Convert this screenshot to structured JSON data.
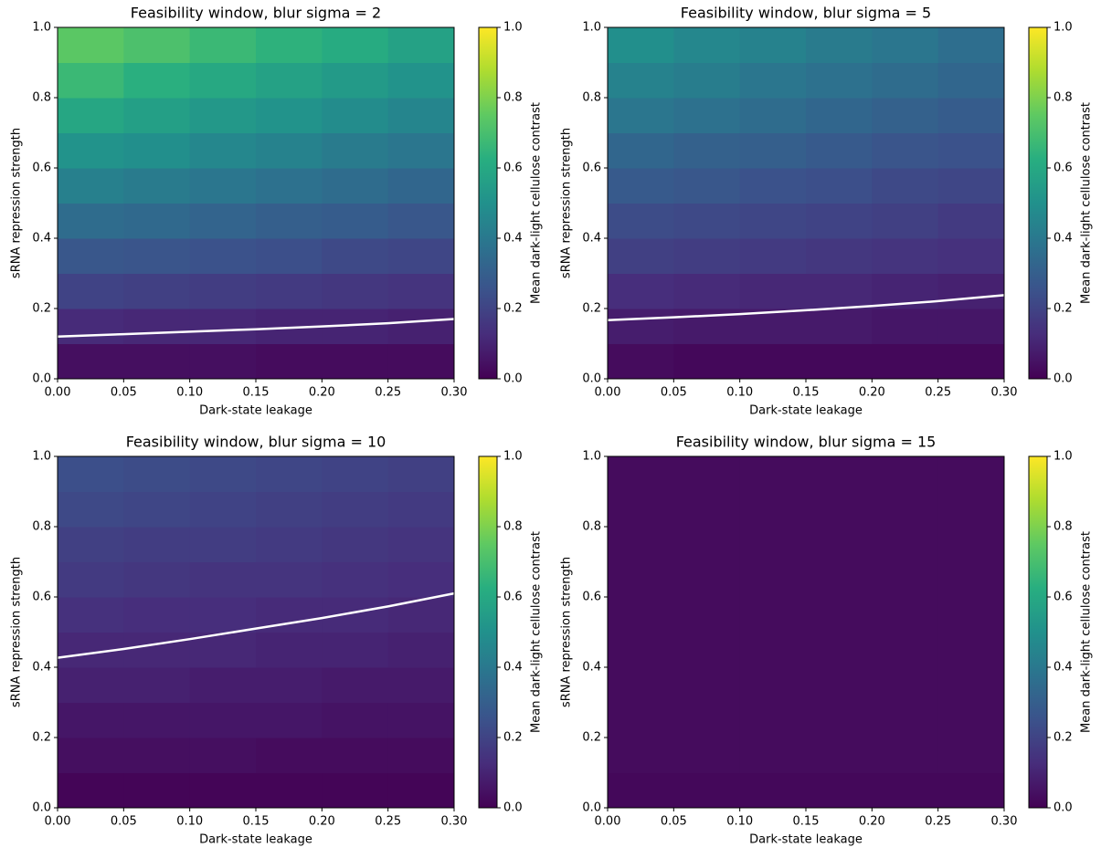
{
  "chart_data": [
    {
      "type": "heatmap",
      "title": "Feasibility window, blur sigma = 2",
      "x_label": "Dark-state leakage",
      "y_label": "sRNA repression strength",
      "colorbar_label": "Mean dark-light cellulose contrast",
      "colormap": "viridis",
      "x_edges": [
        0,
        0.05,
        0.1,
        0.15,
        0.2,
        0.25,
        0.3
      ],
      "y_edges": [
        0,
        0.1,
        0.2,
        0.3,
        0.4,
        0.5,
        0.6,
        0.7,
        0.8,
        0.9,
        1.0
      ],
      "values": [
        [
          0.04,
          0.04,
          0.04,
          0.03,
          0.03,
          0.03
        ],
        [
          0.12,
          0.11,
          0.11,
          0.1,
          0.1,
          0.09
        ],
        [
          0.2,
          0.19,
          0.18,
          0.17,
          0.16,
          0.15
        ],
        [
          0.27,
          0.26,
          0.25,
          0.24,
          0.22,
          0.21
        ],
        [
          0.35,
          0.34,
          0.32,
          0.3,
          0.29,
          0.27
        ],
        [
          0.43,
          0.41,
          0.39,
          0.37,
          0.35,
          0.33
        ],
        [
          0.51,
          0.49,
          0.46,
          0.44,
          0.41,
          0.39
        ],
        [
          0.59,
          0.56,
          0.53,
          0.51,
          0.48,
          0.45
        ],
        [
          0.67,
          0.63,
          0.6,
          0.57,
          0.54,
          0.51
        ],
        [
          0.74,
          0.71,
          0.67,
          0.64,
          0.61,
          0.57
        ]
      ],
      "contour": {
        "color": "#ffffff",
        "x": [
          0,
          0.05,
          0.1,
          0.15,
          0.2,
          0.25,
          0.3
        ],
        "y": [
          0.12,
          0.127,
          0.134,
          0.141,
          0.149,
          0.158,
          0.17
        ]
      },
      "xlim": [
        0,
        0.3
      ],
      "ylim": [
        0,
        1
      ],
      "clim": [
        0,
        1
      ],
      "xticks": [
        {
          "value": 0,
          "label": "0.00"
        },
        {
          "value": 0.05,
          "label": "0.05"
        },
        {
          "value": 0.1,
          "label": "0.10"
        },
        {
          "value": 0.15,
          "label": "0.15"
        },
        {
          "value": 0.2,
          "label": "0.20"
        },
        {
          "value": 0.25,
          "label": "0.25"
        },
        {
          "value": 0.3,
          "label": "0.30"
        }
      ],
      "yticks": [
        {
          "value": 0,
          "label": "0.0"
        },
        {
          "value": 0.2,
          "label": "0.2"
        },
        {
          "value": 0.4,
          "label": "0.4"
        },
        {
          "value": 0.6,
          "label": "0.6"
        },
        {
          "value": 0.8,
          "label": "0.8"
        },
        {
          "value": 1,
          "label": "1.0"
        }
      ],
      "cticks": [
        {
          "value": 0,
          "label": "0.0"
        },
        {
          "value": 0.2,
          "label": "0.2"
        },
        {
          "value": 0.4,
          "label": "0.4"
        },
        {
          "value": 0.6,
          "label": "0.6"
        },
        {
          "value": 0.8,
          "label": "0.8"
        },
        {
          "value": 1,
          "label": "1.0"
        }
      ]
    },
    {
      "type": "heatmap",
      "title": "Feasibility window, blur sigma = 5",
      "x_label": "Dark-state leakage",
      "y_label": "sRNA repression strength",
      "colorbar_label": "Mean dark-light cellulose contrast",
      "colormap": "viridis",
      "x_edges": [
        0,
        0.05,
        0.1,
        0.15,
        0.2,
        0.25,
        0.3
      ],
      "y_edges": [
        0,
        0.1,
        0.2,
        0.3,
        0.4,
        0.5,
        0.6,
        0.7,
        0.8,
        0.9,
        1.0
      ],
      "values": [
        [
          0.03,
          0.02,
          0.02,
          0.02,
          0.02,
          0.02
        ],
        [
          0.08,
          0.07,
          0.07,
          0.07,
          0.06,
          0.06
        ],
        [
          0.13,
          0.12,
          0.11,
          0.11,
          0.1,
          0.09
        ],
        [
          0.19,
          0.18,
          0.17,
          0.16,
          0.15,
          0.14
        ],
        [
          0.23,
          0.22,
          0.21,
          0.2,
          0.19,
          0.17
        ],
        [
          0.28,
          0.27,
          0.25,
          0.24,
          0.22,
          0.21
        ],
        [
          0.33,
          0.31,
          0.3,
          0.28,
          0.26,
          0.25
        ],
        [
          0.39,
          0.37,
          0.35,
          0.33,
          0.31,
          0.29
        ],
        [
          0.44,
          0.42,
          0.39,
          0.37,
          0.35,
          0.33
        ],
        [
          0.49,
          0.46,
          0.44,
          0.41,
          0.39,
          0.36
        ]
      ],
      "contour": {
        "color": "#ffffff",
        "x": [
          0,
          0.05,
          0.1,
          0.15,
          0.2,
          0.25,
          0.3
        ],
        "y": [
          0.167,
          0.175,
          0.184,
          0.195,
          0.207,
          0.221,
          0.238
        ]
      },
      "xlim": [
        0,
        0.3
      ],
      "ylim": [
        0,
        1
      ],
      "clim": [
        0,
        1
      ],
      "xticks": [
        {
          "value": 0,
          "label": "0.00"
        },
        {
          "value": 0.05,
          "label": "0.05"
        },
        {
          "value": 0.1,
          "label": "0.10"
        },
        {
          "value": 0.15,
          "label": "0.15"
        },
        {
          "value": 0.2,
          "label": "0.20"
        },
        {
          "value": 0.25,
          "label": "0.25"
        },
        {
          "value": 0.3,
          "label": "0.30"
        }
      ],
      "yticks": [
        {
          "value": 0,
          "label": "0.0"
        },
        {
          "value": 0.2,
          "label": "0.2"
        },
        {
          "value": 0.4,
          "label": "0.4"
        },
        {
          "value": 0.6,
          "label": "0.6"
        },
        {
          "value": 0.8,
          "label": "0.8"
        },
        {
          "value": 1,
          "label": "1.0"
        }
      ],
      "cticks": [
        {
          "value": 0,
          "label": "0.0"
        },
        {
          "value": 0.2,
          "label": "0.2"
        },
        {
          "value": 0.4,
          "label": "0.4"
        },
        {
          "value": 0.6,
          "label": "0.6"
        },
        {
          "value": 0.8,
          "label": "0.8"
        },
        {
          "value": 1,
          "label": "1.0"
        }
      ]
    },
    {
      "type": "heatmap",
      "title": "Feasibility window, blur sigma = 10",
      "x_label": "Dark-state leakage",
      "y_label": "sRNA repression strength",
      "colorbar_label": "Mean dark-light cellulose contrast",
      "colormap": "viridis",
      "x_edges": [
        0,
        0.05,
        0.1,
        0.15,
        0.2,
        0.25,
        0.3
      ],
      "y_edges": [
        0,
        0.1,
        0.2,
        0.3,
        0.4,
        0.5,
        0.6,
        0.7,
        0.8,
        0.9,
        1.0
      ],
      "values": [
        [
          0.01,
          0.01,
          0.01,
          0.01,
          0.01,
          0.01
        ],
        [
          0.04,
          0.04,
          0.04,
          0.03,
          0.03,
          0.03
        ],
        [
          0.06,
          0.06,
          0.06,
          0.06,
          0.05,
          0.05
        ],
        [
          0.09,
          0.09,
          0.08,
          0.08,
          0.07,
          0.07
        ],
        [
          0.11,
          0.11,
          0.11,
          0.1,
          0.1,
          0.09
        ],
        [
          0.14,
          0.13,
          0.13,
          0.12,
          0.12,
          0.11
        ],
        [
          0.17,
          0.16,
          0.15,
          0.15,
          0.14,
          0.13
        ],
        [
          0.19,
          0.18,
          0.18,
          0.17,
          0.16,
          0.15
        ],
        [
          0.22,
          0.21,
          0.2,
          0.19,
          0.18,
          0.17
        ],
        [
          0.24,
          0.23,
          0.22,
          0.21,
          0.2,
          0.19
        ]
      ],
      "contour": {
        "color": "#ffffff",
        "x": [
          0,
          0.05,
          0.1,
          0.15,
          0.2,
          0.25,
          0.3
        ],
        "y": [
          0.427,
          0.452,
          0.48,
          0.51,
          0.54,
          0.573,
          0.61
        ]
      },
      "xlim": [
        0,
        0.3
      ],
      "ylim": [
        0,
        1
      ],
      "clim": [
        0,
        1
      ],
      "xticks": [
        {
          "value": 0,
          "label": "0.00"
        },
        {
          "value": 0.05,
          "label": "0.05"
        },
        {
          "value": 0.1,
          "label": "0.10"
        },
        {
          "value": 0.15,
          "label": "0.15"
        },
        {
          "value": 0.2,
          "label": "0.20"
        },
        {
          "value": 0.25,
          "label": "0.25"
        },
        {
          "value": 0.3,
          "label": "0.30"
        }
      ],
      "yticks": [
        {
          "value": 0,
          "label": "0.0"
        },
        {
          "value": 0.2,
          "label": "0.2"
        },
        {
          "value": 0.4,
          "label": "0.4"
        },
        {
          "value": 0.6,
          "label": "0.6"
        },
        {
          "value": 0.8,
          "label": "0.8"
        },
        {
          "value": 1,
          "label": "1.0"
        }
      ],
      "cticks": [
        {
          "value": 0,
          "label": "0.0"
        },
        {
          "value": 0.2,
          "label": "0.2"
        },
        {
          "value": 0.4,
          "label": "0.4"
        },
        {
          "value": 0.6,
          "label": "0.6"
        },
        {
          "value": 0.8,
          "label": "0.8"
        },
        {
          "value": 1,
          "label": "1.0"
        }
      ]
    },
    {
      "type": "heatmap",
      "title": "Feasibility window, blur sigma = 15",
      "x_label": "Dark-state leakage",
      "y_label": "sRNA repression strength",
      "colorbar_label": "Mean dark-light cellulose contrast",
      "colormap": "viridis",
      "x_edges": [
        0,
        0.05,
        0.1,
        0.15,
        0.2,
        0.25,
        0.3
      ],
      "y_edges": [
        0,
        0.1,
        0.2,
        0.3,
        0.4,
        0.5,
        0.6,
        0.7,
        0.8,
        0.9,
        1.0
      ],
      "values": [
        [
          0.02,
          0.02,
          0.02,
          0.02,
          0.02,
          0.02
        ],
        [
          0.03,
          0.03,
          0.03,
          0.03,
          0.03,
          0.03
        ],
        [
          0.03,
          0.03,
          0.03,
          0.03,
          0.03,
          0.03
        ],
        [
          0.03,
          0.03,
          0.03,
          0.03,
          0.03,
          0.03
        ],
        [
          0.03,
          0.03,
          0.03,
          0.03,
          0.03,
          0.03
        ],
        [
          0.03,
          0.03,
          0.03,
          0.03,
          0.03,
          0.03
        ],
        [
          0.03,
          0.03,
          0.03,
          0.03,
          0.03,
          0.03
        ],
        [
          0.03,
          0.03,
          0.03,
          0.03,
          0.03,
          0.03
        ],
        [
          0.03,
          0.03,
          0.03,
          0.03,
          0.03,
          0.03
        ],
        [
          0.03,
          0.03,
          0.03,
          0.03,
          0.03,
          0.03
        ]
      ],
      "xlim": [
        0,
        0.3
      ],
      "ylim": [
        0,
        1
      ],
      "clim": [
        0,
        1
      ],
      "xticks": [
        {
          "value": 0,
          "label": "0.00"
        },
        {
          "value": 0.05,
          "label": "0.05"
        },
        {
          "value": 0.1,
          "label": "0.10"
        },
        {
          "value": 0.15,
          "label": "0.15"
        },
        {
          "value": 0.2,
          "label": "0.20"
        },
        {
          "value": 0.25,
          "label": "0.25"
        },
        {
          "value": 0.3,
          "label": "0.30"
        }
      ],
      "yticks": [
        {
          "value": 0,
          "label": "0.0"
        },
        {
          "value": 0.2,
          "label": "0.2"
        },
        {
          "value": 0.4,
          "label": "0.4"
        },
        {
          "value": 0.6,
          "label": "0.6"
        },
        {
          "value": 0.8,
          "label": "0.8"
        },
        {
          "value": 1,
          "label": "1.0"
        }
      ],
      "cticks": [
        {
          "value": 0,
          "label": "0.0"
        },
        {
          "value": 0.2,
          "label": "0.2"
        },
        {
          "value": 0.4,
          "label": "0.4"
        },
        {
          "value": 0.6,
          "label": "0.6"
        },
        {
          "value": 0.8,
          "label": "0.8"
        },
        {
          "value": 1,
          "label": "1.0"
        }
      ]
    }
  ]
}
